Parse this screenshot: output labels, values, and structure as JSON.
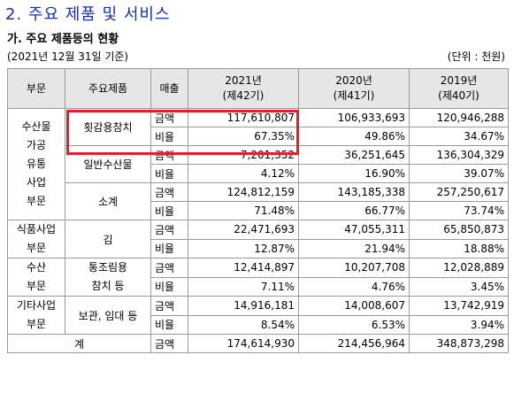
{
  "heading": "2. 주요 제품 및 서비스",
  "subheading": "가. 주요 제품등의 현황",
  "date_note": "(2021년 12월 31일 기준)",
  "unit_note": "(단위 : 천원)",
  "header": {
    "segment": "부문",
    "product": "주요제품",
    "sales": "매출",
    "y2021": "2021년",
    "y2021_term": "(제42기)",
    "y2020": "2020년",
    "y2020_term": "(제41기)",
    "y2019": "2019년",
    "y2019_term": "(제40기)"
  },
  "labels": {
    "amount": "금액",
    "ratio": "비율"
  },
  "groups": [
    {
      "segment": [
        "수산물",
        "가공",
        "유통",
        "사업",
        "부문"
      ],
      "products": [
        {
          "name": "횟감용참치",
          "amount": [
            "117,610,807",
            "106,933,693",
            "120,946,288"
          ],
          "ratio": [
            "67.35%",
            "49.86%",
            "34.67%"
          ]
        },
        {
          "name": "일반수산물",
          "amount": [
            "7,201,352",
            "36,251,645",
            "136,304,329"
          ],
          "ratio": [
            "4.12%",
            "16.90%",
            "39.07%"
          ]
        },
        {
          "name": "소계",
          "amount": [
            "124,812,159",
            "143,185,338",
            "257,250,617"
          ],
          "ratio": [
            "71.48%",
            "66.77%",
            "73.74%"
          ]
        }
      ]
    },
    {
      "segment": [
        "식품사업",
        "부문"
      ],
      "products": [
        {
          "name": "김",
          "amount": [
            "22,471,693",
            "47,055,311",
            "65,850,873"
          ],
          "ratio": [
            "12.87%",
            "21.94%",
            "18.88%"
          ]
        }
      ]
    },
    {
      "segment": [
        "수산",
        "부문"
      ],
      "products": [
        {
          "name": "통조림용\n참치 등",
          "amount": [
            "12,414,897",
            "10,207,708",
            "12,028,889"
          ],
          "ratio": [
            "7.11%",
            "4.76%",
            "3.45%"
          ]
        }
      ]
    },
    {
      "segment": [
        "기타사업",
        "부문"
      ],
      "products": [
        {
          "name": "보관, 임대 등",
          "amount": [
            "14,916,181",
            "14,008,607",
            "13,742,919"
          ],
          "ratio": [
            "8.54%",
            "6.53%",
            "3.94%"
          ]
        }
      ]
    }
  ],
  "total": {
    "label": "계",
    "amount": [
      "174,614,930",
      "214,456,964",
      "348,873,298"
    ]
  },
  "highlight_color": "#e0202e",
  "heading_color": "#1b2fa8"
}
